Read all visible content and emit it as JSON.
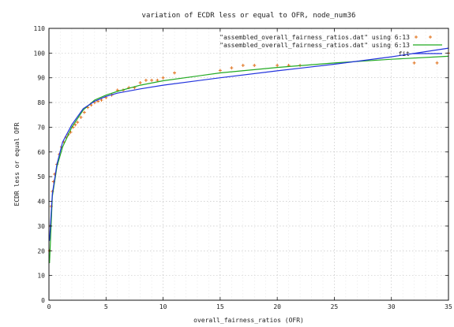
{
  "chart_data": {
    "type": "line",
    "title": "variation of ECDR less or equal to OFR, node_num36",
    "xlabel": "overall_fairness_ratios (OFR)",
    "ylabel": "ECDR less or equal OFR",
    "xlim": [
      0,
      35
    ],
    "ylim": [
      0,
      110
    ],
    "xticks": [
      "0",
      "5",
      "10",
      "15",
      "20",
      "25",
      "30",
      "35"
    ],
    "yticks": [
      "0",
      "10",
      "20",
      "30",
      "40",
      "50",
      "60",
      "70",
      "80",
      "90",
      "100",
      "110"
    ],
    "grid": true,
    "legend_position": "top-right",
    "series": [
      {
        "name": "\"assembled_overall_fairness_ratios.dat\" using 6:13",
        "style": "points",
        "color": "#e0701a",
        "x": [
          0.05,
          0.1,
          0.2,
          0.3,
          0.4,
          0.5,
          0.7,
          0.9,
          1.1,
          1.3,
          1.5,
          1.7,
          1.9,
          2.1,
          2.3,
          2.5,
          2.8,
          3.1,
          3.4,
          3.7,
          4.0,
          4.3,
          4.6,
          5.0,
          5.5,
          6.0,
          6.5,
          7.0,
          7.5,
          8.0,
          8.5,
          9.0,
          9.5,
          10.0,
          11.0,
          15.0,
          16.0,
          17.0,
          18.0,
          20.0,
          21.0,
          22.0,
          32.0,
          34.0
        ],
        "y": [
          20,
          30,
          38,
          44,
          48,
          51,
          55,
          59,
          62,
          64,
          66,
          67,
          68,
          70,
          71,
          72,
          74,
          76,
          78,
          79,
          80,
          80.5,
          81,
          82,
          83,
          85,
          85,
          86,
          86,
          88,
          89,
          89,
          89,
          90,
          92,
          93,
          94,
          95,
          95,
          95,
          95,
          95,
          96,
          96
        ]
      },
      {
        "name": "\"assembled_overall_fairness_ratios.dat\" using 6:13",
        "style": "line",
        "color": "#22aa22",
        "x": [
          0.05,
          0.3,
          0.7,
          1.2,
          2.0,
          3.0,
          4.0,
          5.0,
          6.0,
          8.0,
          10.0,
          15.0,
          20.0,
          25.0,
          30.0,
          35.0
        ],
        "y": [
          15,
          42,
          54,
          62,
          70,
          77,
          81,
          83,
          84.5,
          87,
          88.8,
          92,
          94.2,
          96,
          97.5,
          98.7
        ]
      },
      {
        "name": "fit",
        "style": "line",
        "color": "#2233dd",
        "x": [
          0.05,
          0.3,
          0.7,
          1.2,
          2.0,
          3.0,
          4.0,
          5.0,
          6.0,
          8.0,
          10.0,
          15.0,
          20.0,
          25.0,
          30.0,
          35.0
        ],
        "y": [
          24,
          43,
          55,
          64,
          71,
          77.5,
          80.5,
          82.5,
          83.8,
          85.5,
          87,
          90,
          92.8,
          95.5,
          98.5,
          102
        ]
      }
    ],
    "extra_points": {
      "color": "#e0701a",
      "x": [
        35.0
      ],
      "y": [
        100
      ]
    }
  }
}
